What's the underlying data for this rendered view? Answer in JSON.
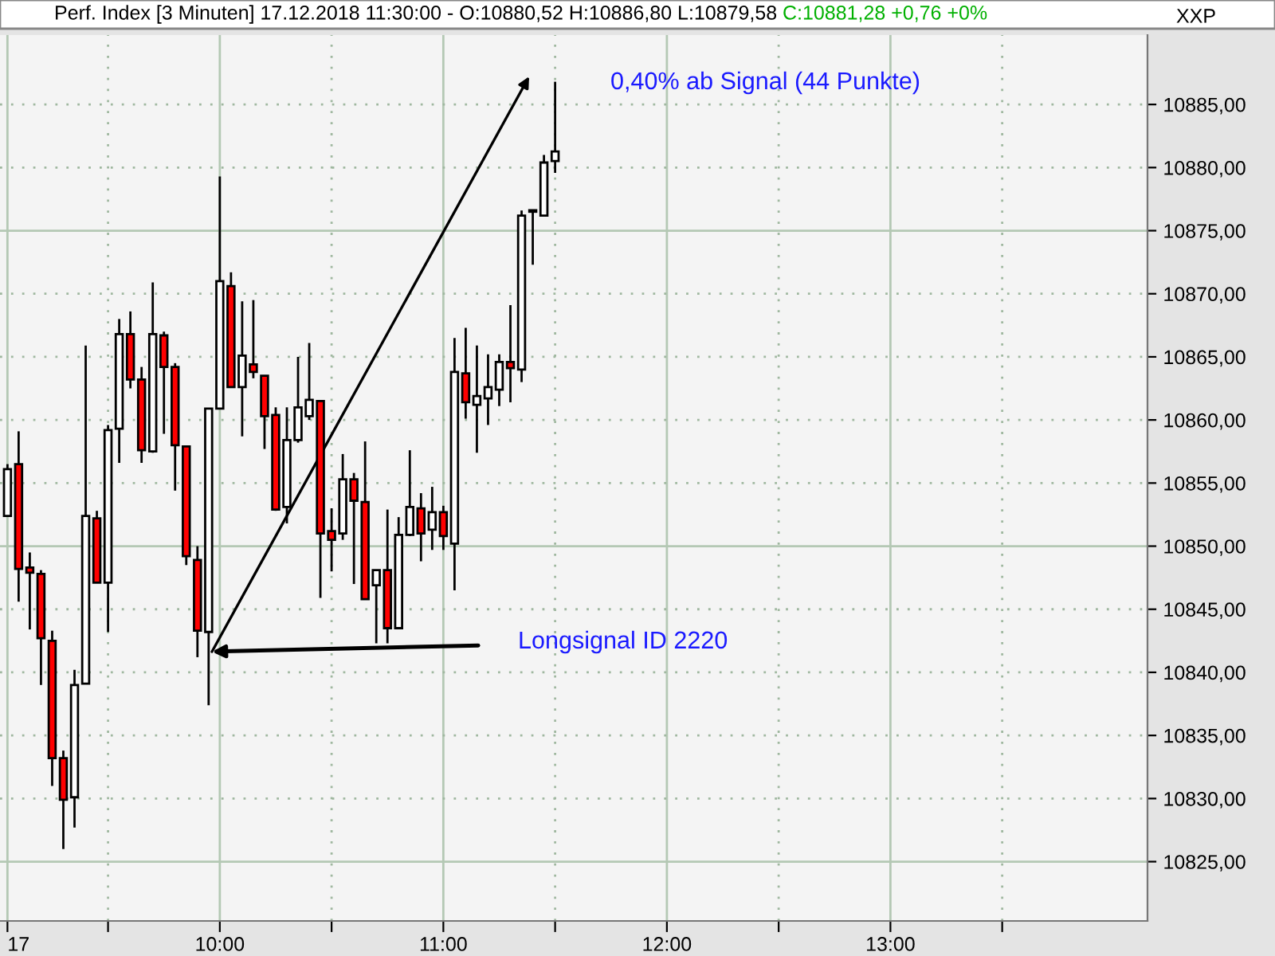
{
  "chart_data": {
    "type": "candlestick",
    "title": "Perf. Index [3 Minuten] 17.12.2018 11:30:00 - O:10880,52 H:10886,80 L:10879,58",
    "subtitle": "C:10881,28 +0,76 +0%",
    "x": [
      "2018-12-17T09:03",
      "2018-12-17T09:06",
      "2018-12-17T09:09",
      "2018-12-17T09:12",
      "2018-12-17T09:15",
      "2018-12-17T09:18",
      "2018-12-17T09:21",
      "2018-12-17T09:24",
      "2018-12-17T09:27",
      "2018-12-17T09:30",
      "2018-12-17T09:33",
      "2018-12-17T09:36",
      "2018-12-17T09:39",
      "2018-12-17T09:42",
      "2018-12-17T09:45",
      "2018-12-17T09:48",
      "2018-12-17T09:51",
      "2018-12-17T09:54",
      "2018-12-17T09:57",
      "2018-12-17T10:00",
      "2018-12-17T10:03",
      "2018-12-17T10:06",
      "2018-12-17T10:09",
      "2018-12-17T10:12",
      "2018-12-17T10:15",
      "2018-12-17T10:18",
      "2018-12-17T10:21",
      "2018-12-17T10:24",
      "2018-12-17T10:27",
      "2018-12-17T10:30",
      "2018-12-17T10:33",
      "2018-12-17T10:36",
      "2018-12-17T10:39",
      "2018-12-17T10:42",
      "2018-12-17T10:45",
      "2018-12-17T10:48",
      "2018-12-17T10:51",
      "2018-12-17T10:54",
      "2018-12-17T10:57",
      "2018-12-17T11:00",
      "2018-12-17T11:03",
      "2018-12-17T11:06",
      "2018-12-17T11:09",
      "2018-12-17T11:12",
      "2018-12-17T11:15",
      "2018-12-17T11:18",
      "2018-12-17T11:21",
      "2018-12-17T11:24",
      "2018-12-17T11:27",
      "2018-12-17T11:30"
    ],
    "ohlc": [
      [
        10852.4,
        10856.5,
        10852.4,
        10856.1
      ],
      [
        10856.5,
        10859.1,
        10845.6,
        10848.2
      ],
      [
        10848.3,
        10849.5,
        10843.4,
        10847.9
      ],
      [
        10847.8,
        10848.1,
        10839.0,
        10842.7
      ],
      [
        10842.5,
        10843.3,
        10831.0,
        10833.2
      ],
      [
        10833.2,
        10833.8,
        10826.0,
        10829.9
      ],
      [
        10830.1,
        10840.2,
        10827.7,
        10839.0
      ],
      [
        10839.1,
        10865.9,
        10839.1,
        10852.4
      ],
      [
        10852.2,
        10852.8,
        10847.1,
        10847.1
      ],
      [
        10847.1,
        10859.6,
        10843.2,
        10859.2
      ],
      [
        10859.3,
        10868.0,
        10856.6,
        10866.8
      ],
      [
        10866.8,
        10868.6,
        10862.5,
        10863.2
      ],
      [
        10863.2,
        10864.2,
        10856.6,
        10857.6
      ],
      [
        10857.5,
        10870.9,
        10857.4,
        10866.8
      ],
      [
        10866.7,
        10867.0,
        10858.9,
        10864.2
      ],
      [
        10864.2,
        10864.5,
        10854.4,
        10858.0
      ],
      [
        10857.9,
        10857.9,
        10848.5,
        10849.2
      ],
      [
        10848.9,
        10850.0,
        10841.2,
        10843.3
      ],
      [
        10843.2,
        10860.9,
        10837.4,
        10860.9
      ],
      [
        10860.9,
        10879.3,
        10860.9,
        10871.0
      ],
      [
        10870.6,
        10871.7,
        10862.6,
        10862.6
      ],
      [
        10862.6,
        10869.4,
        10858.7,
        10865.1
      ],
      [
        10864.4,
        10869.5,
        10863.3,
        10863.8
      ],
      [
        10863.5,
        10863.5,
        10857.7,
        10860.3
      ],
      [
        10860.4,
        10861.0,
        10852.8,
        10852.9
      ],
      [
        10853.1,
        10861.0,
        10851.8,
        10858.4
      ],
      [
        10858.4,
        10865.0,
        10858.2,
        10861.0
      ],
      [
        10860.3,
        10866.1,
        10860.0,
        10861.6
      ],
      [
        10861.5,
        10861.5,
        10845.9,
        10851.0
      ],
      [
        10851.2,
        10853.0,
        10848.0,
        10850.5
      ],
      [
        10851.0,
        10857.3,
        10850.5,
        10855.3
      ],
      [
        10855.3,
        10855.8,
        10847.0,
        10853.6
      ],
      [
        10853.5,
        10858.3,
        10845.8,
        10845.8
      ],
      [
        10846.9,
        10848.1,
        10842.3,
        10848.1
      ],
      [
        10848.1,
        10852.9,
        10842.3,
        10843.5
      ],
      [
        10843.5,
        10852.3,
        10843.5,
        10850.9
      ],
      [
        10850.9,
        10857.6,
        10850.8,
        10853.1
      ],
      [
        10853.0,
        10854.2,
        10848.8,
        10851.0
      ],
      [
        10851.3,
        10854.7,
        10849.7,
        10852.7
      ],
      [
        10852.7,
        10853.2,
        10849.7,
        10850.8
      ],
      [
        10850.2,
        10866.5,
        10846.5,
        10863.8
      ],
      [
        10863.7,
        10867.3,
        10860.1,
        10861.4
      ],
      [
        10861.2,
        10865.9,
        10857.4,
        10861.9
      ],
      [
        10861.7,
        10865.2,
        10859.6,
        10862.6
      ],
      [
        10862.4,
        10865.2,
        10861.1,
        10864.6
      ],
      [
        10864.6,
        10869.1,
        10861.4,
        10864.1
      ],
      [
        10864.0,
        10876.6,
        10863.0,
        10876.2
      ],
      [
        10876.5,
        10876.6,
        10872.3,
        10876.6
      ],
      [
        10876.2,
        10881.0,
        10876.2,
        10880.4
      ],
      [
        10880.52,
        10886.8,
        10879.58,
        10881.28
      ]
    ],
    "colors": [
      "#ffffff",
      "#ff0000",
      "#ff0000",
      "#ff0000",
      "#ff0000",
      "#ff0000",
      "#ffffff",
      "#ffffff",
      "#ff0000",
      "#ffffff",
      "#ffffff",
      "#ff0000",
      "#ff0000",
      "#ffffff",
      "#ff0000",
      "#ff0000",
      "#ff0000",
      "#ff0000",
      "#ffffff",
      "#ffffff",
      "#ff0000",
      "#ffffff",
      "#ff0000",
      "#ff0000",
      "#ff0000",
      "#ffffff",
      "#ffffff",
      "#ffffff",
      "#ff0000",
      "#ff0000",
      "#ffffff",
      "#ff0000",
      "#ff0000",
      "#ffffff",
      "#ff0000",
      "#ffffff",
      "#ffffff",
      "#ff0000",
      "#ffffff",
      "#ff0000",
      "#ffffff",
      "#ff0000",
      "#ffffff",
      "#ffffff",
      "#ffffff",
      "#ff0000",
      "#ffffff",
      "#ffffff",
      "#ffffff",
      "#ffffff"
    ],
    "xlim": [
      "2018-12-17T09:01",
      "2018-12-17T14:09"
    ],
    "xticks": [
      {
        "value": "2018-12-17T09:03",
        "label": "17"
      },
      {
        "value": "2018-12-17T09:30",
        "label": null
      },
      {
        "value": "2018-12-17T10:00",
        "label": "10:00"
      },
      {
        "value": "2018-12-17T10:30",
        "label": null
      },
      {
        "value": "2018-12-17T11:00",
        "label": "11:00"
      },
      {
        "value": "2018-12-17T11:30",
        "label": null
      },
      {
        "value": "2018-12-17T12:00",
        "label": "12:00"
      },
      {
        "value": "2018-12-17T12:30",
        "label": null
      },
      {
        "value": "2018-12-17T13:00",
        "label": "13:00"
      },
      {
        "value": "2018-12-17T13:30",
        "label": null
      }
    ],
    "ylim": [
      10820.3,
      10890.5
    ],
    "yticks": [
      {
        "value": 10825,
        "label": "10825,00"
      },
      {
        "value": 10830,
        "label": "10830,00"
      },
      {
        "value": 10835,
        "label": "10835,00"
      },
      {
        "value": 10840,
        "label": "10840,00"
      },
      {
        "value": 10845,
        "label": "10845,00"
      },
      {
        "value": 10850,
        "label": "10850,00"
      },
      {
        "value": 10855,
        "label": "10855,00"
      },
      {
        "value": 10860,
        "label": "10860,00"
      },
      {
        "value": 10865,
        "label": "10865,00"
      },
      {
        "value": 10870,
        "label": "10870,00"
      },
      {
        "value": 10875,
        "label": "10875,00"
      },
      {
        "value": 10880,
        "label": "10880,00"
      },
      {
        "value": 10885,
        "label": "10885,00"
      }
    ],
    "grid": true,
    "annotations": [
      "Longsignal ID 2220",
      "0,40% ab Signal (44 Punkte)",
      "XXP"
    ]
  }
}
